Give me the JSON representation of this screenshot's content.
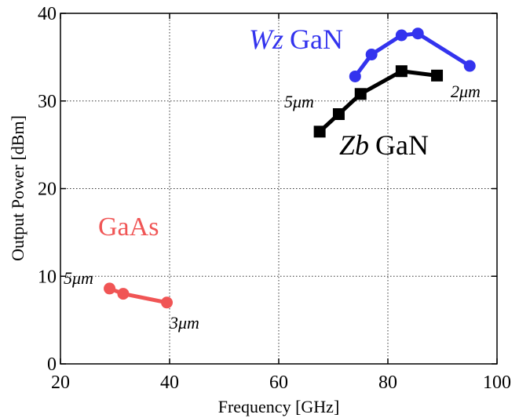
{
  "chart_data": {
    "type": "line",
    "xlabel": "Frequency [GHz]",
    "ylabel": "Output Power [dBm]",
    "xlim": [
      20,
      100
    ],
    "ylim": [
      0,
      40
    ],
    "xticks": [
      20,
      40,
      60,
      80,
      100
    ],
    "yticks": [
      0,
      10,
      20,
      30,
      40
    ],
    "grid": true,
    "series": [
      {
        "name": "Wz GaN",
        "name_italic": "Wz",
        "name_plain": "GaN",
        "color": "#3333ee",
        "marker": "circle",
        "x": [
          74,
          77,
          82.5,
          85.5,
          95
        ],
        "y": [
          32.8,
          35.3,
          37.5,
          37.7,
          34.0
        ]
      },
      {
        "name": "Zb GaN",
        "name_italic": "Zb",
        "name_plain": "GaN",
        "color": "#000000",
        "marker": "square",
        "x": [
          67.5,
          71,
          75,
          82.5,
          89
        ],
        "y": [
          26.5,
          28.5,
          30.8,
          33.4,
          32.9
        ]
      },
      {
        "name": "GaAs",
        "name_italic": "",
        "name_plain": "GaAs",
        "color": "#f05555",
        "marker": "circle",
        "x": [
          29,
          31.5,
          39.5
        ],
        "y": [
          8.6,
          8.0,
          7.0
        ]
      }
    ],
    "annotations": [
      {
        "id": "gaas-5um",
        "text": "5μm"
      },
      {
        "id": "gaas-3um",
        "text": "3μm"
      },
      {
        "id": "zb-5um",
        "text": "5μm"
      },
      {
        "id": "wz-2um",
        "text": "2μm"
      }
    ]
  }
}
